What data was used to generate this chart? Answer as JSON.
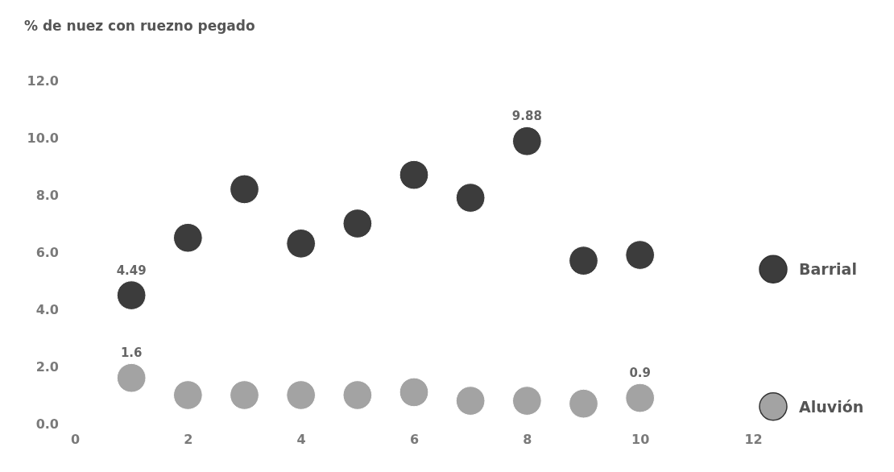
{
  "chart_data": {
    "type": "scatter",
    "title": "% de nuez con ruezno pegado",
    "x": [
      1,
      2,
      3,
      4,
      5,
      6,
      7,
      8,
      9,
      10
    ],
    "series": [
      {
        "name": "Barrial",
        "color": "#3c3c3c",
        "values": [
          4.49,
          6.5,
          8.2,
          6.3,
          7.0,
          8.7,
          7.9,
          9.88,
          5.7,
          5.9
        ],
        "value_labels": [
          "4.49",
          null,
          null,
          null,
          null,
          null,
          null,
          "9.88",
          null,
          null
        ]
      },
      {
        "name": "Aluvión",
        "color": "#a3a3a3",
        "values": [
          1.6,
          1.0,
          1.0,
          1.0,
          1.0,
          1.1,
          0.8,
          0.8,
          0.7,
          0.9
        ],
        "value_labels": [
          "1.6",
          null,
          null,
          null,
          null,
          null,
          null,
          null,
          null,
          "0.9"
        ]
      }
    ],
    "xlim": [
      0,
      12
    ],
    "xticks": [
      0,
      2,
      4,
      6,
      8,
      10,
      12
    ],
    "ylim": [
      0,
      12
    ],
    "yticks": [
      {
        "value": 0,
        "label": "0.0"
      },
      {
        "value": 2,
        "label": "2.0"
      },
      {
        "value": 4,
        "label": "4.0"
      },
      {
        "value": 6,
        "label": "6.0"
      },
      {
        "value": 8,
        "label": "8.0"
      },
      {
        "value": 10,
        "label": "10.0"
      },
      {
        "value": 12,
        "label": "12.0"
      }
    ],
    "marker": "circle",
    "legend": "right",
    "grid": false
  }
}
